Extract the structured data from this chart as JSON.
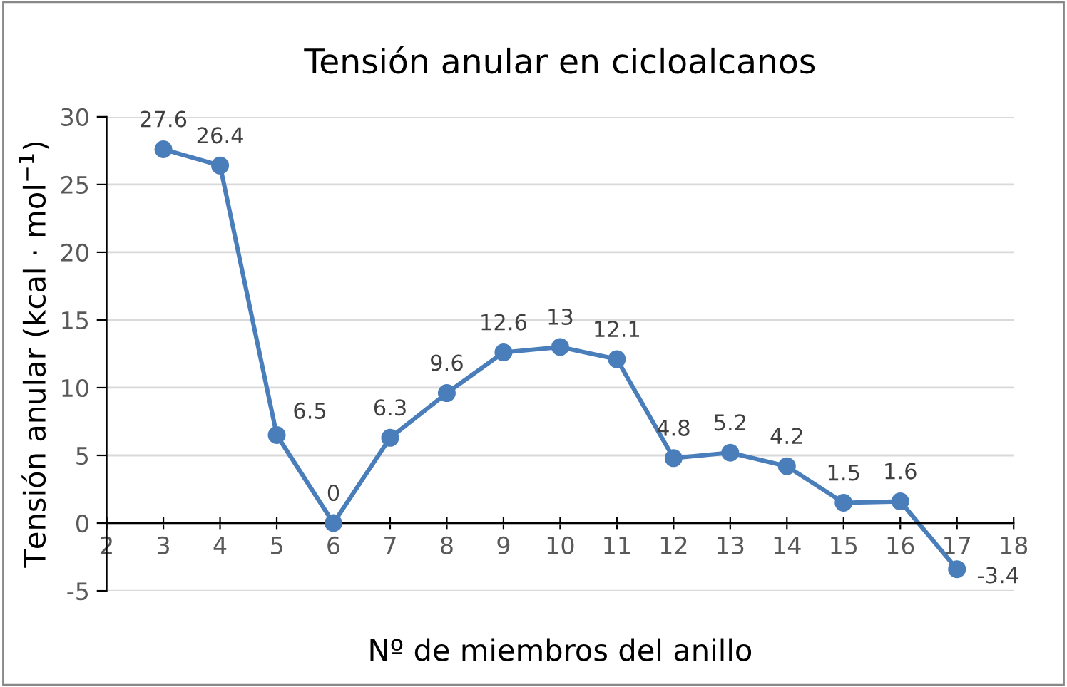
{
  "chart_data": {
    "type": "line",
    "title": "Tensión anular en cicloalcanos",
    "xlabel": "Nº de miembros del anillo",
    "ylabel": "Tensión anular (kcal · mol$^{−1}$)",
    "x": [
      3,
      4,
      5,
      6,
      7,
      8,
      9,
      10,
      11,
      12,
      13,
      14,
      15,
      16,
      17
    ],
    "series": [
      {
        "color": "#4a7ebb",
        "values": [
          27.6,
          26.4,
          6.5,
          0,
          6.3,
          9.6,
          12.6,
          13,
          12.1,
          4.8,
          5.2,
          4.2,
          1.5,
          1.6,
          -3.4
        ]
      }
    ],
    "xlim": [
      2,
      18
    ],
    "xticks": [
      2,
      3,
      4,
      5,
      6,
      7,
      8,
      9,
      10,
      11,
      12,
      13,
      14,
      15,
      16,
      17,
      18
    ],
    "ylim": [
      -5,
      30
    ],
    "yticks": [
      -5,
      0,
      5,
      10,
      15,
      20,
      25,
      30
    ],
    "grid": "y",
    "marker": "circle",
    "line_style": "solid",
    "data_labels": true
  }
}
